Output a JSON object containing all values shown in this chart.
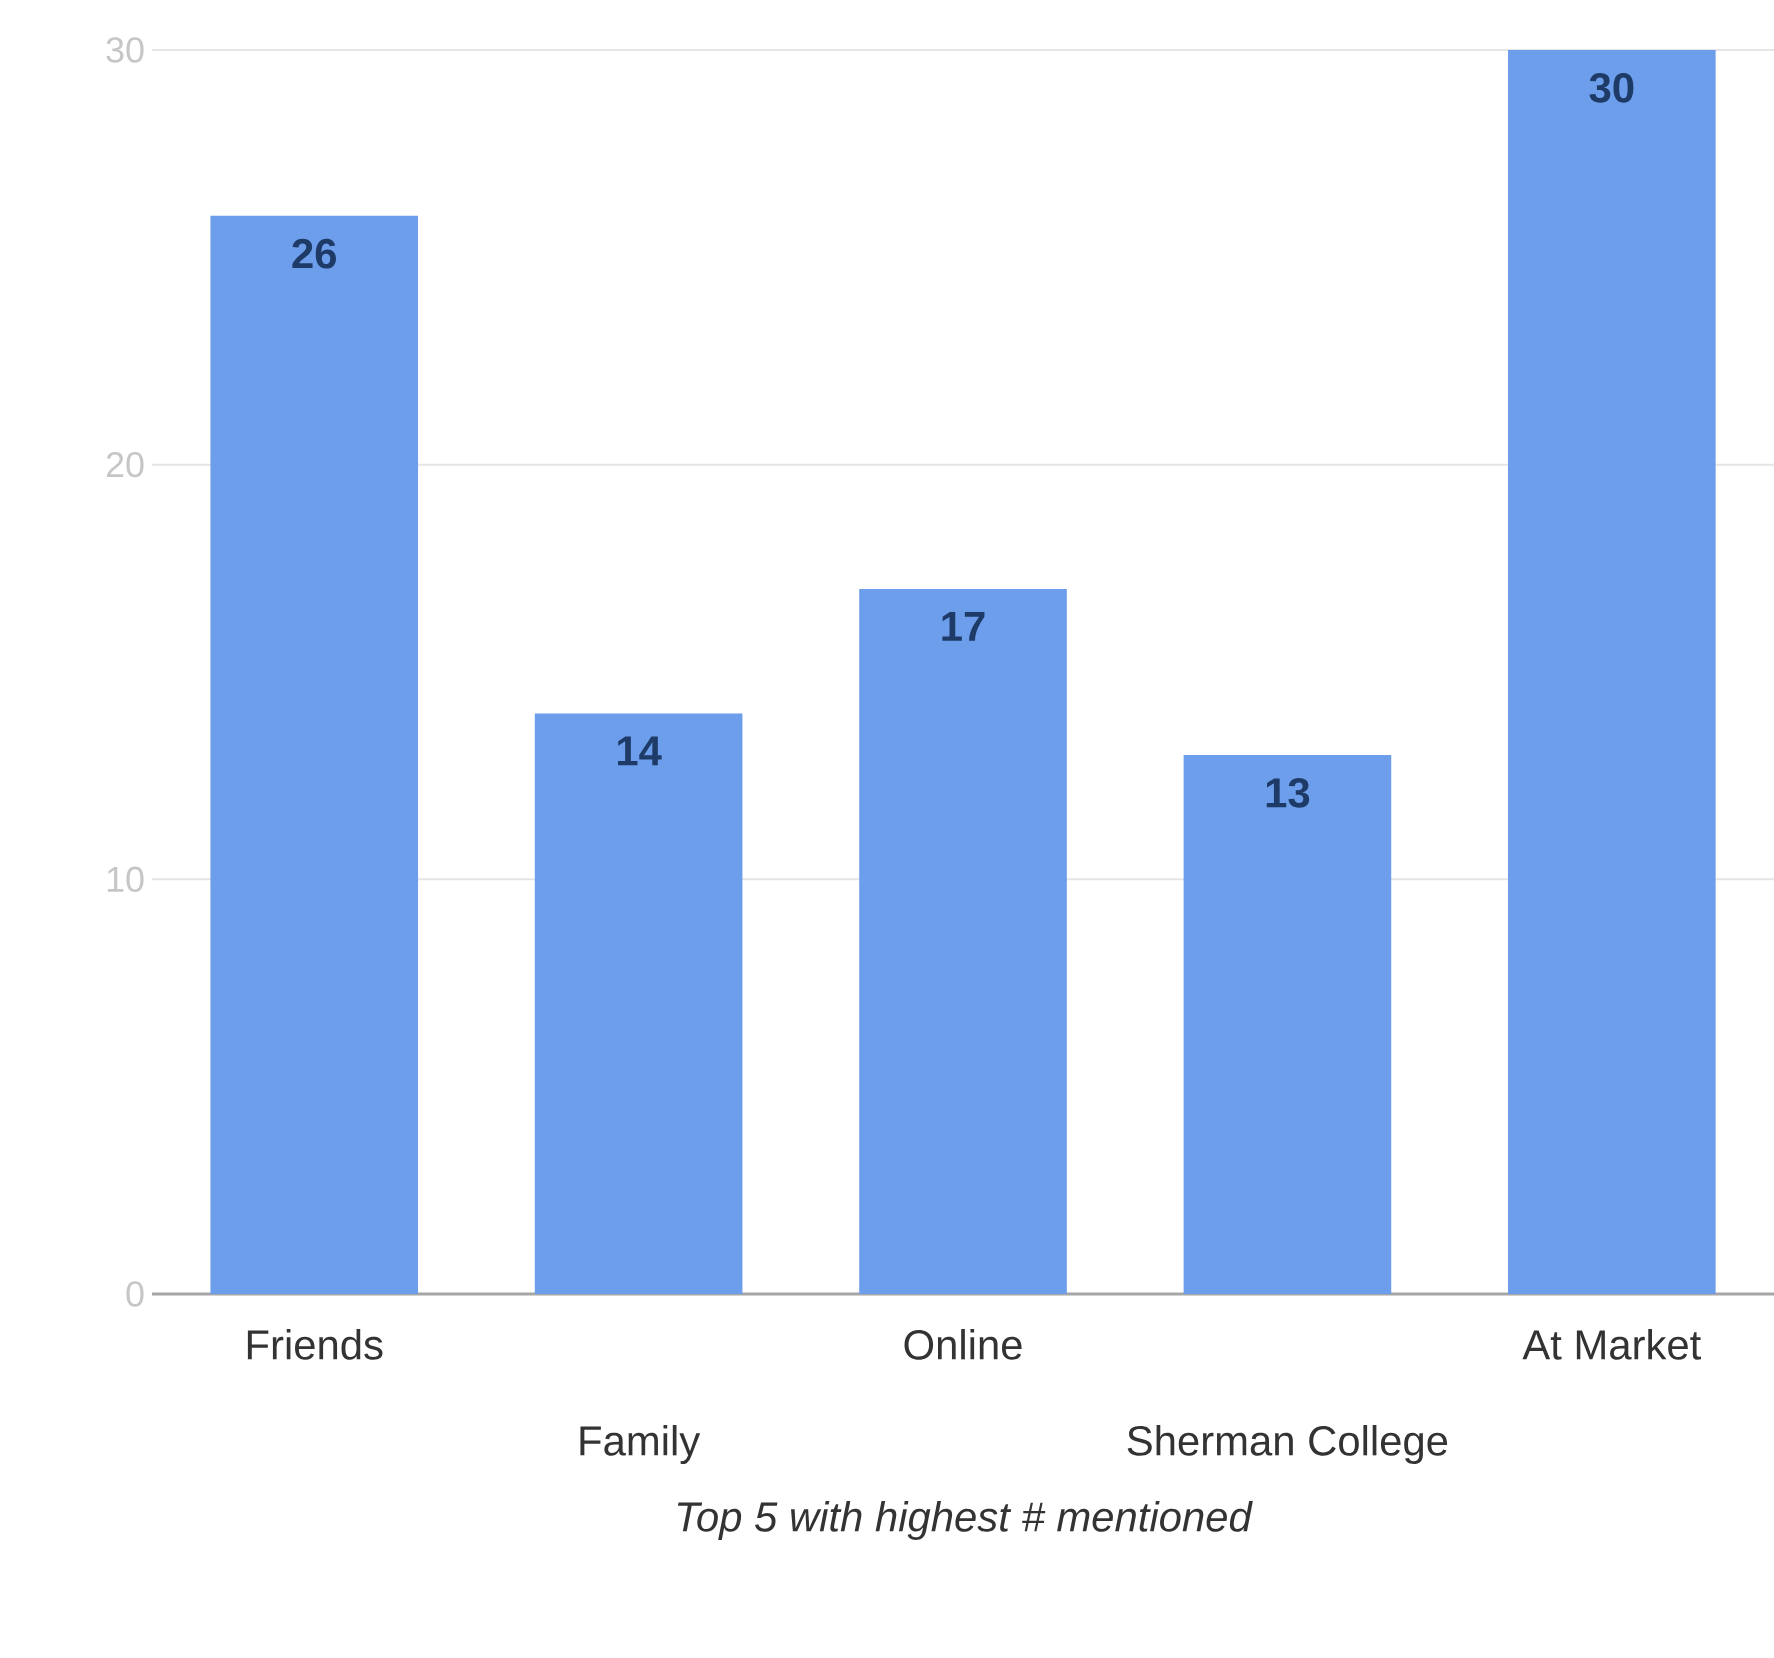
{
  "chart_data": {
    "type": "bar",
    "xlabel": "Top 5 with highest # mentioned",
    "categories": [
      "Friends",
      "Family",
      "Online",
      "Sherman College",
      "At Market"
    ],
    "values": [
      26,
      14,
      17,
      13,
      30
    ],
    "color": "#6d9eeb",
    "ylim": [
      0,
      30
    ],
    "yticks": [
      0,
      10,
      20,
      30
    ],
    "grid": "y",
    "data_labels": true,
    "legend": false
  }
}
